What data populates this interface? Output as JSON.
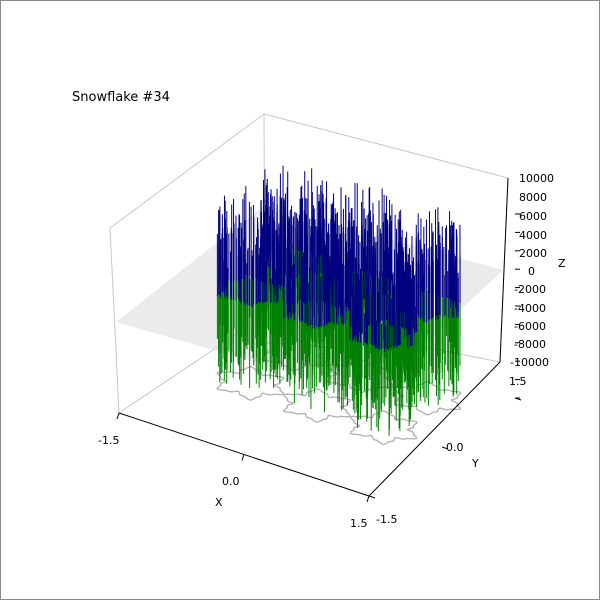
{
  "chart_data": {
    "type": "3d-stem",
    "title": "Snowflake #34",
    "xlabel": "X",
    "ylabel": "Y",
    "zlabel": "Z",
    "xlim": [
      -1.5,
      1.5
    ],
    "ylim": [
      -1.5,
      1.5
    ],
    "zlim": [
      -10000,
      10000
    ],
    "x_ticks": [
      "-1.5",
      "0.0",
      "1.5"
    ],
    "y_ticks": [
      "-1.5",
      "0.0",
      "1.5"
    ],
    "z_ticks": [
      "10000",
      "8000",
      "6000",
      "4000",
      "2000",
      "0",
      "-2000",
      "-4000",
      "-6000",
      "-8000",
      "-10000"
    ],
    "z0_plane": true,
    "grid": true,
    "colors": {
      "positive": "#000080",
      "negative": "#008000",
      "plane": "#e0e0e0",
      "outline": "#b0b0b0"
    },
    "snowflake_centers": [
      [
        -0.8,
        0.9
      ],
      [
        0.0,
        0.9
      ],
      [
        0.8,
        0.9
      ],
      [
        -0.8,
        0.0
      ],
      [
        0.0,
        0.0
      ],
      [
        0.8,
        0.0
      ]
    ]
  }
}
